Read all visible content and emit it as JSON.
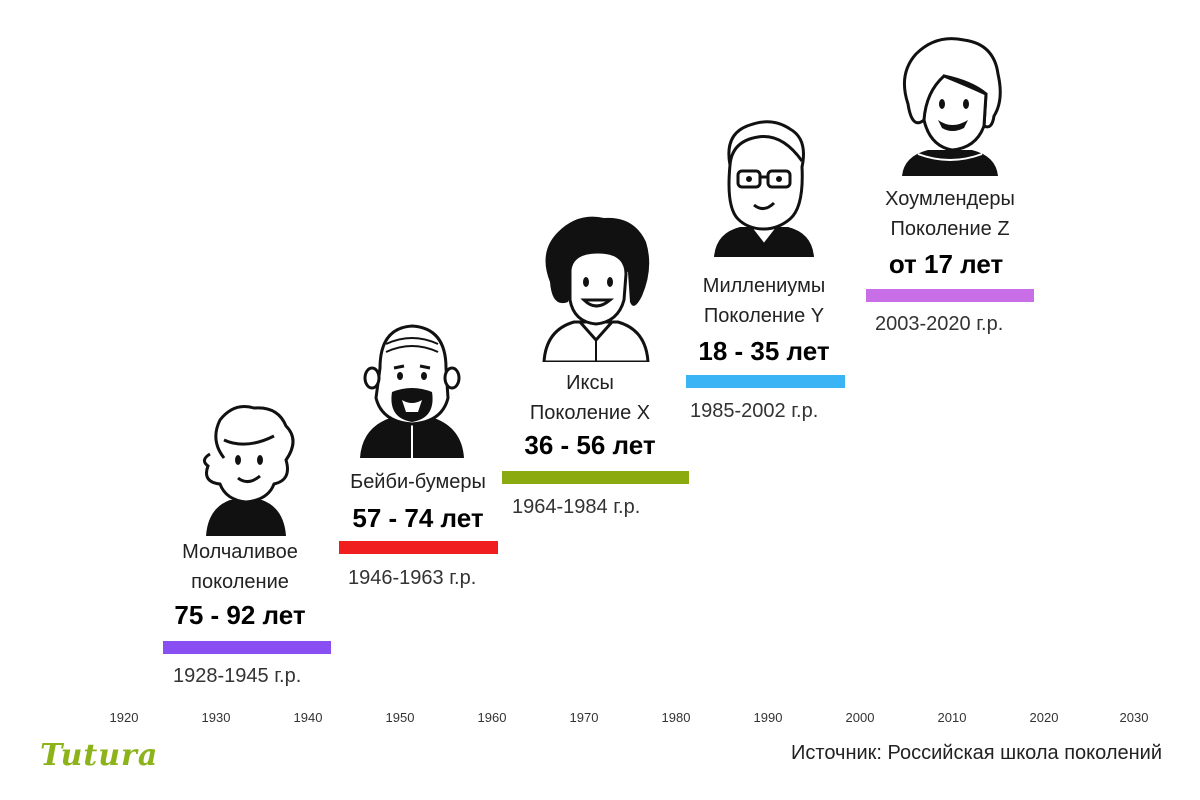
{
  "generations": [
    {
      "name_line1": "Молчаливое",
      "name_line2": "поколение",
      "age": "75 - 92 лет",
      "years": "1928-1945 г.р.",
      "color": "#8a4ff2",
      "avatar": "silent-avatar-icon"
    },
    {
      "name_line1": "Бейби-бумеры",
      "name_line2": "",
      "age": "57 - 74 лет",
      "years": "1946-1963 г.р.",
      "color": "#f01e1e",
      "avatar": "boomer-avatar-icon"
    },
    {
      "name_line1": "Иксы",
      "name_line2": "Поколение X",
      "age": "36 - 56 лет",
      "years": "1964-1984 г.р.",
      "color": "#8aaa10",
      "avatar": "genx-avatar-icon"
    },
    {
      "name_line1": "Миллениумы",
      "name_line2": "Поколение Y",
      "age": "18 - 35 лет",
      "years": "1985-2002 г.р.",
      "color": "#3ab4f5",
      "avatar": "millennial-avatar-icon"
    },
    {
      "name_line1": "Хоумлендеры",
      "name_line2": "Поколение Z",
      "age": "от 17 лет",
      "years": "2003-2020 г.р.",
      "color": "#c86ee6",
      "avatar": "genz-avatar-icon"
    }
  ],
  "axis_ticks": [
    "1920",
    "1930",
    "1940",
    "1950",
    "1960",
    "1970",
    "1980",
    "1990",
    "2000",
    "2010",
    "2020",
    "2030"
  ],
  "logo": "Tutura",
  "logo_color": "#8db31a",
  "source": "Источник: Российская школа поколений"
}
